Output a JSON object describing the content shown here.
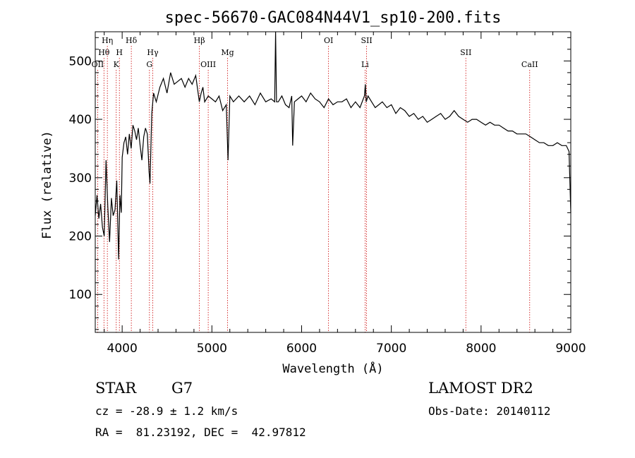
{
  "chart_data": {
    "type": "line",
    "title": "spec-56670-GAC084N44V1_sp10-200.fits",
    "xlabel": "Wavelength (Å)",
    "ylabel": "Flux (relative)",
    "xlim": [
      3700,
      9000
    ],
    "ylim": [
      35,
      550
    ],
    "xticks": [
      4000,
      5000,
      6000,
      7000,
      8000,
      9000
    ],
    "yticks": [
      100,
      200,
      300,
      400,
      500
    ],
    "grid": false,
    "series": [
      {
        "x": [
          3700,
          3720,
          3740,
          3760,
          3780,
          3800,
          3820,
          3840,
          3860,
          3880,
          3900,
          3920,
          3940,
          3960,
          3975,
          3990,
          4000,
          4020,
          4040,
          4060,
          4080,
          4100,
          4120,
          4140,
          4160,
          4180,
          4200,
          4220,
          4240,
          4260,
          4280,
          4300,
          4310,
          4330,
          4350,
          4380,
          4420,
          4460,
          4500,
          4540,
          4580,
          4620,
          4660,
          4700,
          4740,
          4780,
          4820,
          4860,
          4880,
          4900,
          4920,
          4960,
          5000,
          5040,
          5080,
          5120,
          5160,
          5180,
          5200,
          5240,
          5300,
          5360,
          5420,
          5480,
          5540,
          5600,
          5660,
          5700,
          5710,
          5720,
          5740,
          5780,
          5820,
          5860,
          5890,
          5900,
          5920,
          5960,
          6000,
          6050,
          6100,
          6150,
          6200,
          6250,
          6300,
          6350,
          6400,
          6450,
          6500,
          6550,
          6600,
          6650,
          6700,
          6710,
          6720,
          6740,
          6780,
          6820,
          6860,
          6900,
          6950,
          7000,
          7050,
          7100,
          7150,
          7200,
          7250,
          7300,
          7350,
          7400,
          7450,
          7500,
          7550,
          7600,
          7650,
          7700,
          7750,
          7800,
          7850,
          7900,
          7950,
          8000,
          8050,
          8100,
          8150,
          8200,
          8250,
          8300,
          8350,
          8400,
          8450,
          8500,
          8550,
          8600,
          8650,
          8700,
          8750,
          8800,
          8850,
          8900,
          8950,
          8980,
          9000
        ],
        "y": [
          235,
          270,
          230,
          255,
          215,
          200,
          330,
          250,
          190,
          265,
          235,
          245,
          295,
          160,
          270,
          240,
          335,
          360,
          370,
          340,
          375,
          350,
          390,
          380,
          365,
          385,
          355,
          330,
          370,
          385,
          375,
          310,
          290,
          410,
          445,
          430,
          455,
          470,
          445,
          480,
          460,
          465,
          470,
          455,
          470,
          460,
          475,
          430,
          445,
          455,
          430,
          440,
          435,
          430,
          440,
          415,
          425,
          330,
          440,
          430,
          440,
          430,
          440,
          425,
          445,
          430,
          435,
          430,
          550,
          430,
          430,
          440,
          425,
          420,
          440,
          355,
          430,
          435,
          440,
          430,
          445,
          435,
          430,
          420,
          435,
          425,
          430,
          430,
          435,
          420,
          430,
          420,
          440,
          460,
          430,
          440,
          430,
          420,
          425,
          430,
          420,
          425,
          410,
          420,
          415,
          405,
          410,
          400,
          405,
          395,
          400,
          405,
          410,
          400,
          405,
          415,
          405,
          400,
          395,
          400,
          400,
          395,
          390,
          395,
          390,
          390,
          385,
          380,
          380,
          375,
          375,
          375,
          370,
          365,
          360,
          360,
          355,
          355,
          360,
          355,
          355,
          345,
          240
        ]
      }
    ],
    "lines": [
      {
        "x": 3727,
        "label": "OII",
        "row": 3
      },
      {
        "x": 3797,
        "label": "Hθ",
        "row": 2
      },
      {
        "x": 3835,
        "label": "Hη",
        "row": 1
      },
      {
        "x": 3934,
        "label": "K",
        "row": 3
      },
      {
        "x": 3969,
        "label": "H",
        "row": 2
      },
      {
        "x": 4102,
        "label": "Hδ",
        "row": 1
      },
      {
        "x": 4304,
        "label": "G",
        "row": 3
      },
      {
        "x": 4341,
        "label": "Hγ",
        "row": 2
      },
      {
        "x": 4861,
        "label": "Hβ",
        "row": 1
      },
      {
        "x": 4959,
        "label": "OIII",
        "row": 3
      },
      {
        "x": 5175,
        "label": "Mg",
        "row": 2
      },
      {
        "x": 6300,
        "label": "OI",
        "row": 1
      },
      {
        "x": 6707,
        "label": "Li",
        "row": 3
      },
      {
        "x": 6724,
        "label": "SII",
        "row": 1
      },
      {
        "x": 7830,
        "label": "SII",
        "row": 2
      },
      {
        "x": 8542,
        "label": "CaII",
        "row": 3
      }
    ],
    "colors": {
      "spectrum": "#000000",
      "lines": "#cc0000",
      "axes": "#000000"
    }
  },
  "info": {
    "left_line1_a": "STAR",
    "left_line1_b": "G7",
    "left_line2": "cz = -28.9 ± 1.2 km/s",
    "left_line3": "RA =  81.23192, DEC =  42.97812",
    "right_line1": "LAMOST DR2",
    "right_line2": "Obs-Date: 20140112"
  }
}
